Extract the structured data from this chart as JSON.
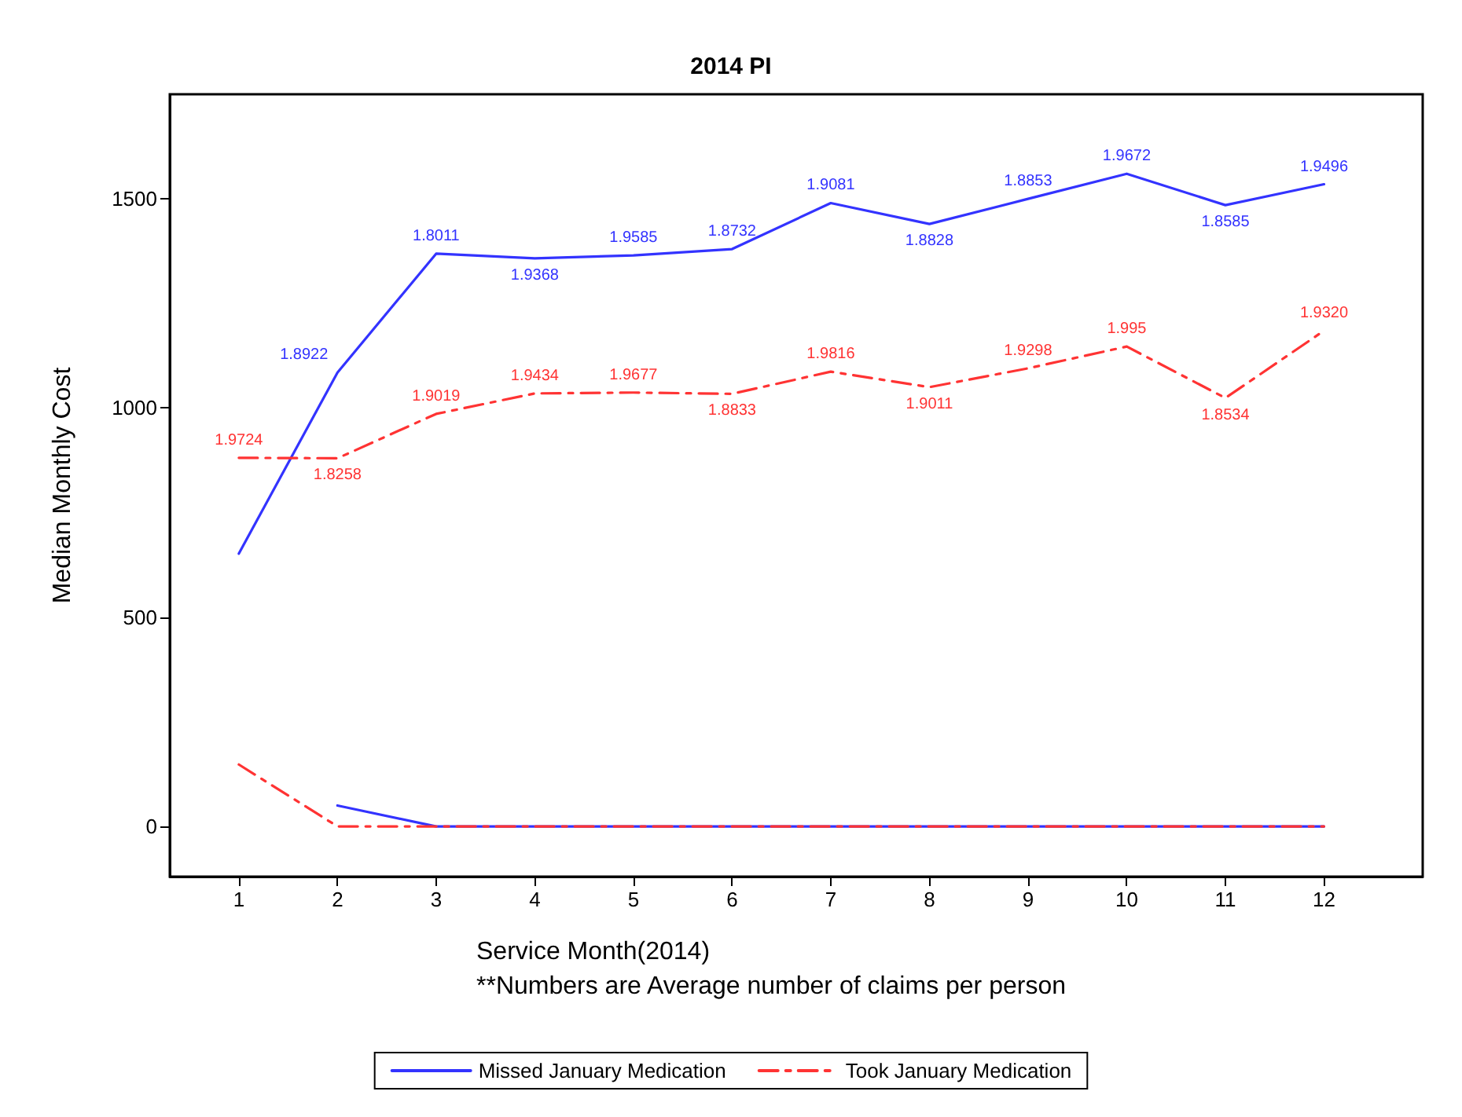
{
  "chart_data": {
    "type": "line",
    "title": "2014 PI",
    "xlabel": "Service Month(2014)",
    "ylabel": "Median Monthly Cost",
    "annotations": [
      "**Numbers are Average number of claims per person",
      {
        "text": "1.8922",
        "x": 2,
        "y": 1085
      },
      {
        "text": "1.8011",
        "x": 3,
        "y": 1369
      },
      {
        "text": "1.9368",
        "x": 4,
        "y": 1358
      },
      {
        "text": "1.9585",
        "x": 5,
        "y": 1365
      },
      {
        "text": "1.8732",
        "x": 6,
        "y": 1380
      },
      {
        "text": "1.9081",
        "x": 7,
        "y": 1490
      },
      {
        "text": "1.8828",
        "x": 8,
        "y": 1440
      },
      {
        "text": "1.8853",
        "x": 9,
        "y": 1500
      },
      {
        "text": "1.9672",
        "x": 10,
        "y": 1560
      },
      {
        "text": "1.8585",
        "x": 11,
        "y": 1485
      },
      {
        "text": "1.9496",
        "x": 12,
        "y": 1535
      },
      {
        "text": "1.9724",
        "x": 1,
        "y": 881
      },
      {
        "text": "1.8258",
        "x": 2,
        "y": 880
      },
      {
        "text": "1.9019",
        "x": 3,
        "y": 986
      },
      {
        "text": "1.9434",
        "x": 4,
        "y": 1035
      },
      {
        "text": "1.9677",
        "x": 5,
        "y": 1037
      },
      {
        "text": "1.8833",
        "x": 6,
        "y": 1034
      },
      {
        "text": "1.9816",
        "x": 7,
        "y": 1087
      },
      {
        "text": "1.9011",
        "x": 8,
        "y": 1050
      },
      {
        "text": "1.9298",
        "x": 9,
        "y": 1095
      },
      {
        "text": "1.995",
        "x": 10,
        "y": 1147
      },
      {
        "text": "1.8534",
        "x": 11,
        "y": 1024
      },
      {
        "text": "1.9320",
        "x": 12,
        "y": 1185
      }
    ],
    "x": [
      1,
      2,
      3,
      4,
      5,
      6,
      7,
      8,
      9,
      10,
      11,
      12
    ],
    "xlim": [
      0.3,
      13
    ],
    "xticks": [
      1,
      2,
      3,
      4,
      5,
      6,
      7,
      8,
      9,
      10,
      11,
      12
    ],
    "ylim": [
      -120,
      1750
    ],
    "yticks": [
      0,
      500,
      1000,
      1500
    ],
    "legend": "bottom",
    "marker": "none",
    "series": [
      {
        "name": "Missed January Medication",
        "color": "#3333ff",
        "line_style": "solid",
        "values": [
          652,
          1085,
          1369,
          1358,
          1365,
          1380,
          1490,
          1440,
          1500,
          1560,
          1485,
          1535
        ]
      },
      {
        "name": "Took January Medication",
        "color": "#ff3333",
        "line_style": "dashed",
        "values": [
          881,
          880,
          986,
          1035,
          1037,
          1034,
          1087,
          1050,
          1095,
          1147,
          1024,
          1185
        ]
      },
      {
        "color": "#3333ff",
        "line_style": "solid",
        "values": [
          null,
          50,
          0,
          0,
          0,
          0,
          0,
          0,
          0,
          0,
          0,
          0
        ]
      },
      {
        "color": "#ff3333",
        "line_style": "dashed",
        "values": [
          148,
          0,
          0,
          0,
          0,
          0,
          0,
          0,
          0,
          0,
          0,
          0
        ]
      }
    ]
  }
}
